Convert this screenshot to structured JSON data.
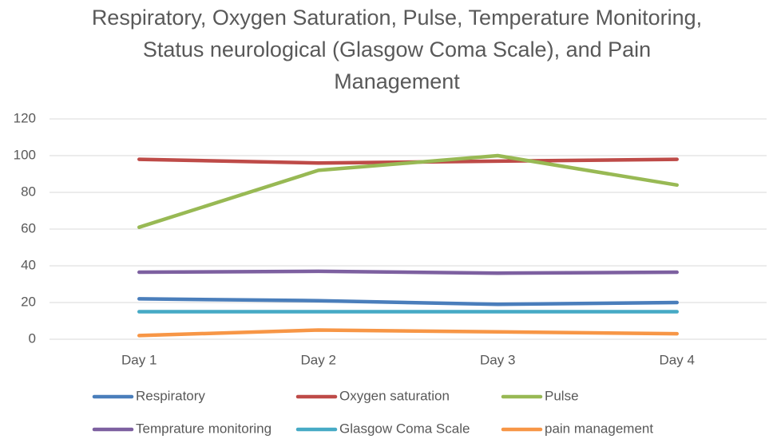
{
  "chart_data": {
    "type": "line",
    "title": "Respiratory, Oxygen Saturation, Pulse, Temperature Monitoring, Status neurological (Glasgow Coma Scale), and Pain Management",
    "categories": [
      "Day 1",
      "Day 2",
      "Day 3",
      "Day 4"
    ],
    "series": [
      {
        "name": "Respiratory",
        "color": "#4a7ebb",
        "values": [
          22,
          21,
          19,
          20
        ]
      },
      {
        "name": "Oxygen saturation",
        "color": "#be4b48",
        "values": [
          98,
          96,
          97,
          98
        ]
      },
      {
        "name": "Pulse",
        "color": "#98b954",
        "values": [
          61,
          92,
          100,
          84
        ]
      },
      {
        "name": "Temprature monitoring",
        "color": "#7d60a0",
        "values": [
          36.5,
          37,
          36,
          36.5
        ]
      },
      {
        "name": "Glasgow Coma Scale",
        "color": "#46aac5",
        "values": [
          15,
          15,
          15,
          15
        ]
      },
      {
        "name": "pain management",
        "color": "#f79646",
        "values": [
          2,
          5,
          4,
          3
        ]
      }
    ],
    "ylim": [
      0,
      120
    ],
    "yticks": [
      0,
      20,
      40,
      60,
      80,
      100,
      120
    ],
    "grid": true,
    "legend": "bottom"
  }
}
